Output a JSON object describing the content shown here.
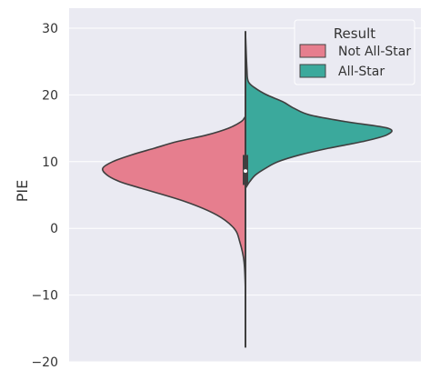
{
  "chart_data": {
    "type": "violin",
    "split": true,
    "title": "",
    "xlabel": "",
    "ylabel": "PIE",
    "ylim": [
      -20,
      30
    ],
    "yticks": [
      -20,
      -10,
      0,
      10,
      20,
      30
    ],
    "grid": true,
    "legend": {
      "title": "Result",
      "placement": "top-right",
      "entries": [
        {
          "label": "Not All-Star",
          "color": "#E67E8E"
        },
        {
          "label": "All-Star",
          "color": "#3BA99C"
        }
      ]
    },
    "series": [
      {
        "name": "Not All-Star",
        "side": "left",
        "color": "#E67E8E",
        "density": [
          [
            -17.8,
            0.0
          ],
          [
            -10,
            0.0
          ],
          [
            -5,
            0.01
          ],
          [
            -2,
            0.04
          ],
          [
            0,
            0.08
          ],
          [
            2,
            0.2
          ],
          [
            4,
            0.42
          ],
          [
            6,
            0.73
          ],
          [
            7,
            0.88
          ],
          [
            8,
            0.97
          ],
          [
            9,
            1.0
          ],
          [
            10,
            0.93
          ],
          [
            11,
            0.8
          ],
          [
            12,
            0.64
          ],
          [
            13,
            0.48
          ],
          [
            14,
            0.27
          ],
          [
            15,
            0.12
          ],
          [
            16,
            0.03
          ],
          [
            16.8,
            0.0
          ]
        ]
      },
      {
        "name": "All-Star",
        "side": "right",
        "color": "#3BA99C",
        "density": [
          [
            6,
            0.0
          ],
          [
            7,
            0.03
          ],
          [
            8,
            0.07
          ],
          [
            9,
            0.14
          ],
          [
            10,
            0.23
          ],
          [
            11,
            0.38
          ],
          [
            12,
            0.58
          ],
          [
            13,
            0.82
          ],
          [
            14,
            0.99
          ],
          [
            15,
            1.0
          ],
          [
            16,
            0.7
          ],
          [
            17,
            0.45
          ],
          [
            18,
            0.34
          ],
          [
            19,
            0.26
          ],
          [
            20,
            0.15
          ],
          [
            21,
            0.07
          ],
          [
            22,
            0.02
          ],
          [
            24,
            0.01
          ],
          [
            29.5,
            0.0
          ]
        ]
      }
    ],
    "box": {
      "min": -17.8,
      "q1": 6.5,
      "median": 8.6,
      "q3": 11,
      "max": 29.5
    }
  }
}
